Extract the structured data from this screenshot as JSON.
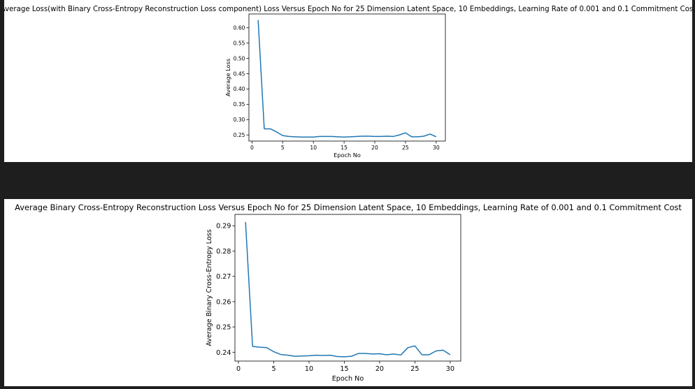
{
  "chart_data": [
    {
      "type": "line",
      "title": "Average Loss(with Binary Cross-Entropy Reconstruction Loss component) Loss Versus Epoch No for 25 Dimension Latent Space, 10 Embeddings, Learning Rate of 0.001 and 0.1 Commitment Cost",
      "xlabel": "Epoch No",
      "ylabel": "Average  Loss",
      "xlim": [
        -0.5,
        31.5
      ],
      "ylim": [
        0.23,
        0.645
      ],
      "xticks": [
        0,
        5,
        10,
        15,
        20,
        25,
        30
      ],
      "yticks": [
        0.25,
        0.3,
        0.35,
        0.4,
        0.45,
        0.5,
        0.55,
        0.6
      ],
      "ytick_labels": [
        "0.25",
        "0.30",
        "0.35",
        "0.40",
        "0.45",
        "0.50",
        "0.55",
        "0.60"
      ],
      "line_color": "#1f77b4",
      "grid": false,
      "series": [
        {
          "x": [
            1,
            2,
            3,
            4,
            5,
            6,
            7,
            8,
            9,
            10,
            11,
            12,
            13,
            14,
            15,
            16,
            17,
            18,
            19,
            20,
            21,
            22,
            23,
            24,
            25,
            26,
            27,
            28,
            29,
            30
          ],
          "values": [
            0.625,
            0.27,
            0.27,
            0.26,
            0.248,
            0.245,
            0.244,
            0.243,
            0.243,
            0.243,
            0.245,
            0.245,
            0.245,
            0.244,
            0.243,
            0.244,
            0.245,
            0.246,
            0.246,
            0.245,
            0.245,
            0.246,
            0.245,
            0.25,
            0.257,
            0.244,
            0.244,
            0.246,
            0.253,
            0.244
          ]
        }
      ]
    },
    {
      "type": "line",
      "title": "Average Binary Cross-Entropy Reconstruction Loss Versus Epoch No for 25 Dimension Latent Space, 10 Embeddings, Learning Rate of 0.001 and 0.1 Commitment Cost",
      "xlabel": "Epoch No",
      "ylabel": "Average Binary Cross-Entropy Loss",
      "xlim": [
        -0.5,
        31.5
      ],
      "ylim": [
        0.2365,
        0.2945
      ],
      "xticks": [
        0,
        5,
        10,
        15,
        20,
        25,
        30
      ],
      "yticks": [
        0.24,
        0.25,
        0.26,
        0.27,
        0.28,
        0.29
      ],
      "ytick_labels": [
        "0.24",
        "0.25",
        "0.26",
        "0.27",
        "0.28",
        "0.29"
      ],
      "line_color": "#1f77b4",
      "grid": false,
      "series": [
        {
          "x": [
            1,
            2,
            3,
            4,
            5,
            6,
            7,
            8,
            9,
            10,
            11,
            12,
            13,
            14,
            15,
            16,
            17,
            18,
            19,
            20,
            21,
            22,
            23,
            24,
            25,
            26,
            27,
            28,
            29,
            30
          ],
          "values": [
            0.2915,
            0.2423,
            0.242,
            0.2418,
            0.2402,
            0.2391,
            0.2388,
            0.2384,
            0.2385,
            0.2386,
            0.2388,
            0.2387,
            0.2388,
            0.2383,
            0.2382,
            0.2384,
            0.2395,
            0.2395,
            0.2393,
            0.2394,
            0.239,
            0.2393,
            0.2389,
            0.2418,
            0.2425,
            0.239,
            0.239,
            0.2405,
            0.2408,
            0.239
          ]
        }
      ]
    }
  ]
}
